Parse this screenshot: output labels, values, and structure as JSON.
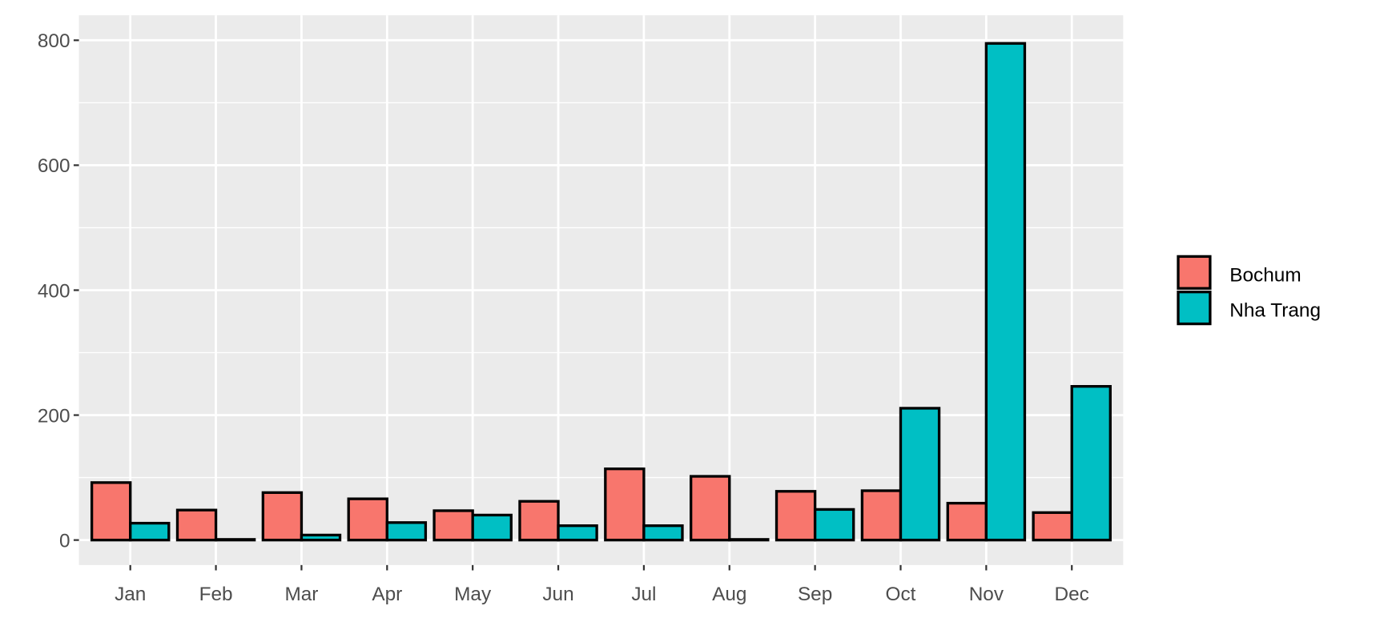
{
  "chart_data": {
    "type": "bar",
    "title": "",
    "xlabel": "",
    "ylabel": "",
    "categories": [
      "Jan",
      "Feb",
      "Mar",
      "Apr",
      "May",
      "Jun",
      "Jul",
      "Aug",
      "Sep",
      "Oct",
      "Nov",
      "Dec"
    ],
    "series": [
      {
        "name": "Bochum",
        "color": "#F8766D",
        "values": [
          92,
          48,
          76,
          66,
          47,
          62,
          114,
          102,
          78,
          79,
          59,
          44
        ]
      },
      {
        "name": "Nha Trang",
        "color": "#00BFC4",
        "values": [
          27,
          1,
          8,
          28,
          40,
          23,
          23,
          1,
          49,
          211,
          795,
          246
        ]
      }
    ],
    "ylim": [
      -40,
      840
    ],
    "yticks": [
      0,
      200,
      400,
      600,
      800
    ],
    "grid": true,
    "legend": "right",
    "panel_background": "#EBEBEB",
    "bar_outline": "#000000"
  }
}
